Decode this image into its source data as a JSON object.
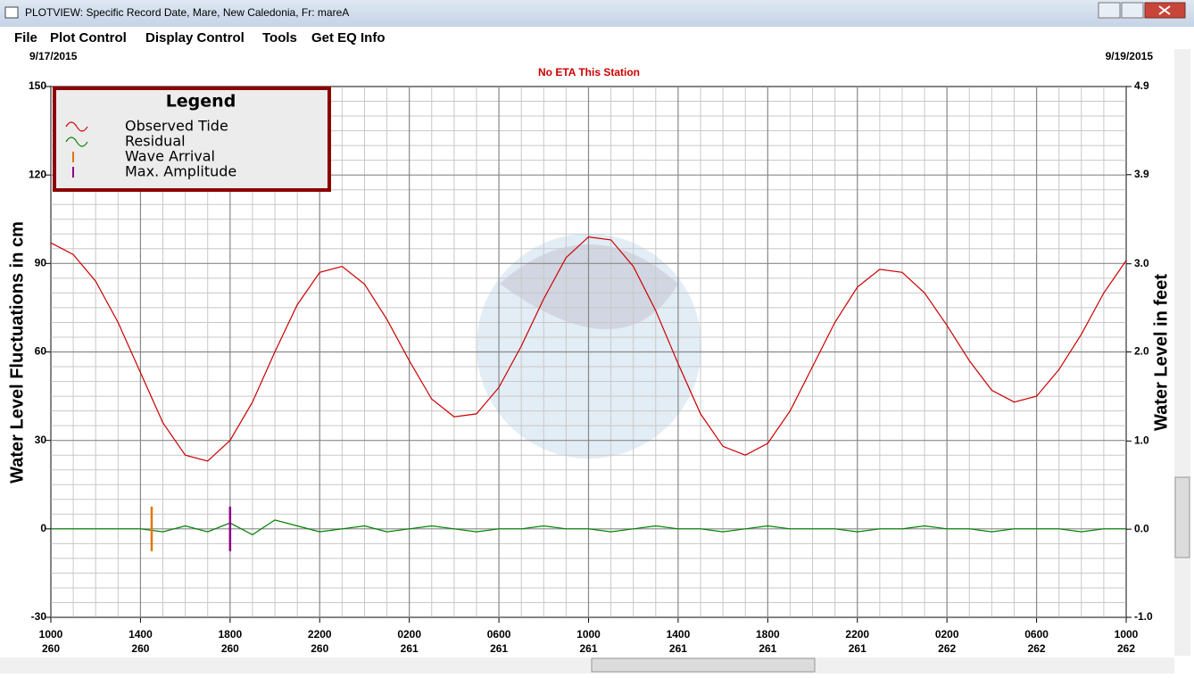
{
  "window": {
    "title": "PLOTVIEW: Specific Record Date, Mare, New Caledonia, Fr: mareA",
    "menu": [
      "File",
      "Plot Control",
      "Display Control",
      "Tools",
      "Get EQ Info"
    ]
  },
  "chart_data": {
    "type": "line",
    "start_date": "9/17/2015",
    "end_date": "9/19/2015",
    "annotation": "No ETA This Station",
    "y_label": "Water Level Fluctuations in cm",
    "y2_label": "Water Level in feet",
    "legend_title": "Legend",
    "x": [
      0,
      1,
      2,
      3,
      4,
      5,
      6,
      7,
      8,
      9,
      10,
      11,
      12,
      13,
      14,
      15,
      16,
      17,
      18,
      19,
      20,
      21,
      22,
      23,
      24,
      25,
      26,
      27,
      28,
      29,
      30,
      31,
      32,
      33,
      34,
      35,
      36,
      37,
      38,
      39,
      40,
      41,
      42,
      43,
      44,
      45,
      46,
      47,
      48
    ],
    "xlim": [
      0,
      48
    ],
    "xticks": [
      {
        "value": 0,
        "label": "1000"
      },
      {
        "value": 4,
        "label": "1400"
      },
      {
        "value": 8,
        "label": "1800"
      },
      {
        "value": 12,
        "label": "2200"
      },
      {
        "value": 16,
        "label": "0200"
      },
      {
        "value": 20,
        "label": "0600"
      },
      {
        "value": 24,
        "label": "1000"
      },
      {
        "value": 28,
        "label": "1400"
      },
      {
        "value": 32,
        "label": "1800"
      },
      {
        "value": 36,
        "label": "2200"
      },
      {
        "value": 40,
        "label": "0200"
      },
      {
        "value": 44,
        "label": "0600"
      },
      {
        "value": 48,
        "label": "1000"
      }
    ],
    "xtick_days": [
      "260",
      "260",
      "260",
      "260",
      "261",
      "261",
      "261",
      "261",
      "261",
      "261",
      "262",
      "262",
      "262"
    ],
    "ylim": [
      -30,
      150
    ],
    "yticks": [
      -30,
      0,
      30,
      60,
      90,
      120,
      150
    ],
    "y2lim": [
      -0.98,
      4.92
    ],
    "y2ticks": [
      {
        "value": -0.98,
        "label": "-1.0"
      },
      {
        "value": 0,
        "label": "0.0"
      },
      {
        "value": 0.98,
        "label": "1.0"
      },
      {
        "value": 1.97,
        "label": "2.0"
      },
      {
        "value": 2.95,
        "label": "3.0"
      },
      {
        "value": 3.94,
        "label": "3.9"
      },
      {
        "value": 4.92,
        "label": "4.9"
      }
    ],
    "grid": true,
    "series": [
      {
        "name": "Observed Tide",
        "color": "#cc0000",
        "values": [
          97,
          93,
          84,
          70,
          53,
          36,
          25,
          23,
          30,
          43,
          60,
          76,
          87,
          89,
          83,
          71,
          57,
          44,
          38,
          39,
          48,
          62,
          78,
          92,
          99,
          98,
          89,
          74,
          56,
          39,
          28,
          25,
          29,
          40,
          55,
          70,
          82,
          88,
          87,
          80,
          69,
          57,
          47,
          43,
          45,
          54,
          66,
          80,
          91
        ]
      },
      {
        "name": "Residual",
        "color": "#008000",
        "values": [
          0,
          0,
          0,
          0,
          0,
          -1,
          1,
          -1,
          2,
          -2,
          3,
          1,
          -1,
          0,
          1,
          -1,
          0,
          1,
          0,
          -1,
          0,
          0,
          1,
          0,
          0,
          -1,
          0,
          1,
          0,
          0,
          -1,
          0,
          1,
          0,
          0,
          0,
          -1,
          0,
          0,
          1,
          0,
          0,
          -1,
          0,
          0,
          0,
          -1,
          0,
          0
        ]
      }
    ],
    "markers": [
      {
        "name": "Wave Arrival",
        "color": "#e07800",
        "x": 4.5
      },
      {
        "name": "Max. Amplitude",
        "color": "#8b008b",
        "x": 8
      }
    ]
  }
}
